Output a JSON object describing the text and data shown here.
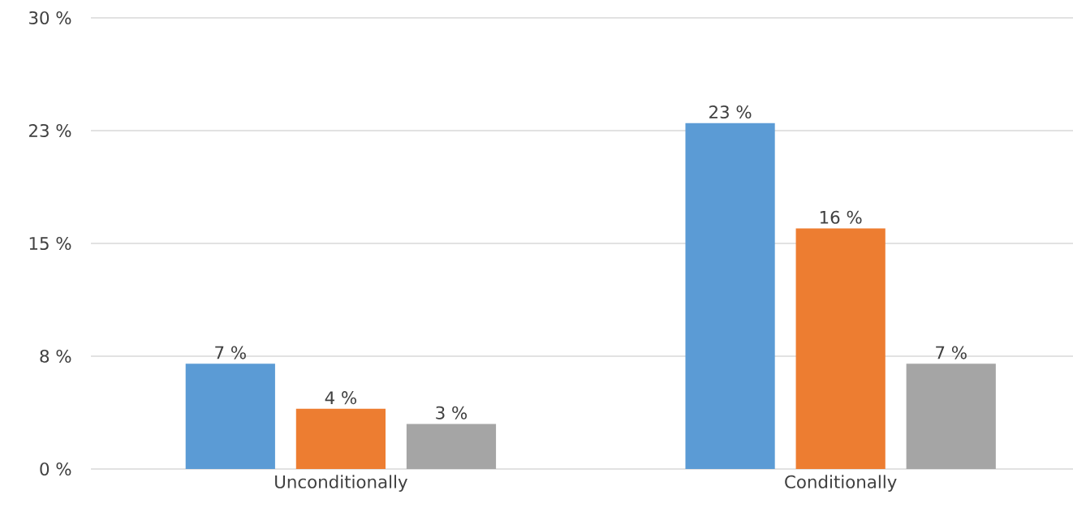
{
  "chart_data": {
    "type": "bar",
    "categories": [
      "Unconditionally",
      "Conditionally"
    ],
    "series": [
      {
        "color": "#5b9bd5",
        "values": [
          7,
          23
        ],
        "value_labels": [
          "7 %",
          "23 %"
        ]
      },
      {
        "color": "#ed7d31",
        "values": [
          4,
          16
        ],
        "value_labels": [
          "4 %",
          "16 %"
        ]
      },
      {
        "color": "#a5a5a5",
        "values": [
          3,
          7
        ],
        "value_labels": [
          "3 %",
          "7 %"
        ]
      }
    ],
    "ylim": [
      0,
      30
    ],
    "yticks": [
      {
        "value": 0,
        "label": "0 %"
      },
      {
        "value": 7.5,
        "label": "8 %"
      },
      {
        "value": 15,
        "label": "15 %"
      },
      {
        "value": 22.5,
        "label": "23 %"
      },
      {
        "value": 30,
        "label": "30 %"
      }
    ],
    "grid": "y"
  }
}
